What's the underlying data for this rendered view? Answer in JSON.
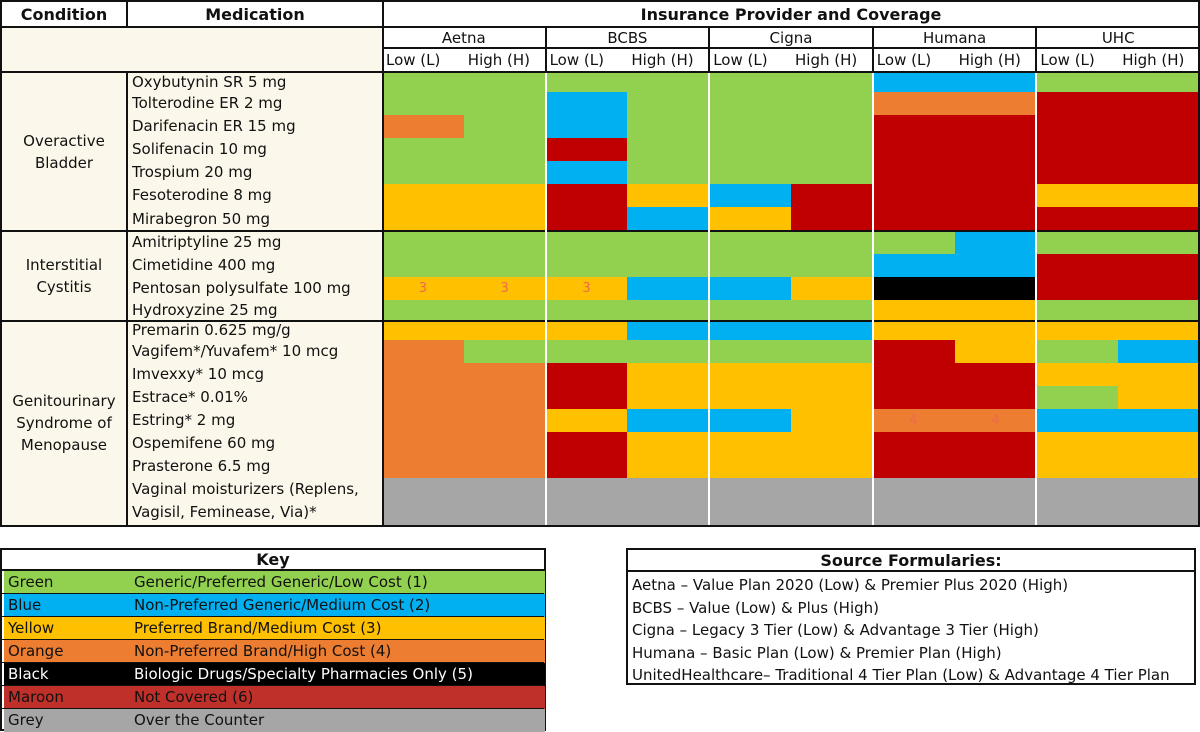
{
  "header": {
    "condition": "Condition",
    "medication": "Medication",
    "insurance": "Insurance Provider and Coverage",
    "providers": [
      "Aetna",
      "BCBS",
      "Cigna",
      "Humana",
      "UHC"
    ],
    "low": "Low (L)",
    "high": "High (H)"
  },
  "conditions": [
    {
      "name": "Overactive\nBladder"
    },
    {
      "name": "Interstitial\nCystitis"
    },
    {
      "name": "Genitourinary\nSyndrome of\nMenopause"
    }
  ],
  "medications": [
    "Oxybutynin SR 5 mg",
    "Tolterodine ER 2 mg",
    "Darifenacin ER 15 mg",
    "Solifenacin 10 mg",
    "Trospium 20 mg",
    "Fesoterodine 8 mg",
    "Mirabegron 50 mg",
    "Amitriptyline 25 mg",
    "Cimetidine 400 mg",
    "Pentosan polysulfate 100 mg",
    "Hydroxyzine 25 mg",
    "Premarin 0.625 mg/g",
    "Vagifem*/Yuvafem* 10 mcg",
    "Imvexxy* 10 mcg",
    "Estrace* 0.01%",
    "Estring* 2 mg",
    "Ospemifene 60 mg",
    "Prasterone 6.5 mg",
    "Vaginal moisturizers (Replens,\nVagisil, Feminease, Via)*"
  ],
  "colors": {
    "G": "#92d050",
    "B": "#00b0f0",
    "Y": "#ffc000",
    "O": "#ed7d31",
    "K": "#000000",
    "M": "#c00000",
    "R": "#a6a6a6"
  },
  "coverage": [
    [
      "G",
      "G",
      "G",
      "G",
      "G",
      "G",
      "B",
      "B",
      "G",
      "G"
    ],
    [
      "G",
      "G",
      "B",
      "G",
      "G",
      "G",
      "O",
      "O",
      "M",
      "M"
    ],
    [
      "O",
      "G",
      "B",
      "G",
      "G",
      "G",
      "M",
      "M",
      "M",
      "M"
    ],
    [
      "G",
      "G",
      "M",
      "G",
      "G",
      "G",
      "M",
      "M",
      "M",
      "M"
    ],
    [
      "G",
      "G",
      "B",
      "G",
      "G",
      "G",
      "M",
      "M",
      "M",
      "M"
    ],
    [
      "Y",
      "Y",
      "M",
      "Y",
      "B",
      "M",
      "M",
      "M",
      "Y",
      "Y"
    ],
    [
      "Y",
      "Y",
      "M",
      "B",
      "Y",
      "M",
      "M",
      "M",
      "M",
      "M"
    ],
    [
      "G",
      "G",
      "G",
      "G",
      "G",
      "G",
      "G",
      "B",
      "G",
      "G"
    ],
    [
      "G",
      "G",
      "G",
      "G",
      "G",
      "G",
      "B",
      "B",
      "M",
      "M"
    ],
    [
      "Y",
      "Y",
      "Y",
      "B",
      "B",
      "Y",
      "K",
      "K",
      "M",
      "M"
    ],
    [
      "G",
      "G",
      "G",
      "G",
      "G",
      "G",
      "Y",
      "Y",
      "G",
      "G"
    ],
    [
      "Y",
      "Y",
      "Y",
      "B",
      "B",
      "B",
      "Y",
      "Y",
      "Y",
      "Y"
    ],
    [
      "O",
      "G",
      "G",
      "G",
      "G",
      "G",
      "M",
      "Y",
      "G",
      "B"
    ],
    [
      "O",
      "O",
      "M",
      "Y",
      "Y",
      "Y",
      "M",
      "M",
      "Y",
      "Y"
    ],
    [
      "O",
      "O",
      "M",
      "Y",
      "Y",
      "Y",
      "M",
      "M",
      "G",
      "Y"
    ],
    [
      "O",
      "O",
      "Y",
      "B",
      "B",
      "Y",
      "O",
      "O",
      "B",
      "B"
    ],
    [
      "O",
      "O",
      "M",
      "Y",
      "Y",
      "Y",
      "M",
      "M",
      "Y",
      "Y"
    ],
    [
      "O",
      "O",
      "M",
      "Y",
      "Y",
      "Y",
      "M",
      "M",
      "Y",
      "Y"
    ],
    [
      "R",
      "R",
      "R",
      "R",
      "R",
      "R",
      "R",
      "R",
      "R",
      "R"
    ]
  ],
  "cell_numbers": [
    {
      "row": 9,
      "col": 0,
      "text": "3"
    },
    {
      "row": 9,
      "col": 1,
      "text": "3"
    },
    {
      "row": 9,
      "col": 2,
      "text": "3"
    },
    {
      "row": 15,
      "col": 6,
      "text": "4"
    },
    {
      "row": 15,
      "col": 7,
      "text": "4"
    }
  ],
  "key": {
    "title": "Key",
    "items": [
      {
        "color_name": "Green",
        "desc": "Generic/Preferred Generic/Low Cost (1)",
        "bg": "#92d050",
        "fg": "#111111"
      },
      {
        "color_name": "Blue",
        "desc": "Non-Preferred Generic/Medium Cost (2)",
        "bg": "#00b0f0",
        "fg": "#111111"
      },
      {
        "color_name": "Yellow",
        "desc": "Preferred Brand/Medium Cost (3)",
        "bg": "#ffc000",
        "fg": "#111111"
      },
      {
        "color_name": "Orange",
        "desc": "Non-Preferred Brand/High Cost (4)",
        "bg": "#ed7d31",
        "fg": "#111111"
      },
      {
        "color_name": "Black",
        "desc": "Biologic Drugs/Specialty Pharmacies Only (5)",
        "bg": "#000000",
        "fg": "#ffffff"
      },
      {
        "color_name": "Maroon",
        "desc": "Not Covered (6)",
        "bg": "#c0302b",
        "fg": "#111111"
      },
      {
        "color_name": "Grey",
        "desc": "Over the Counter",
        "bg": "#a6a6a6",
        "fg": "#111111"
      }
    ]
  },
  "sources": {
    "title": "Source Formularies:",
    "lines": [
      "Aetna – Value Plan 2020 (Low) & Premier Plus 2020 (High)",
      "BCBS – Value (Low) & Plus (High)",
      "Cigna – Legacy 3 Tier (Low) & Advantage 3 Tier (High)",
      "Humana – Basic Plan (Low) & Premier Plan (High)",
      "UnitedHealthcare– Traditional 4 Tier Plan (Low) & Advantage 4 Tier Plan"
    ]
  }
}
